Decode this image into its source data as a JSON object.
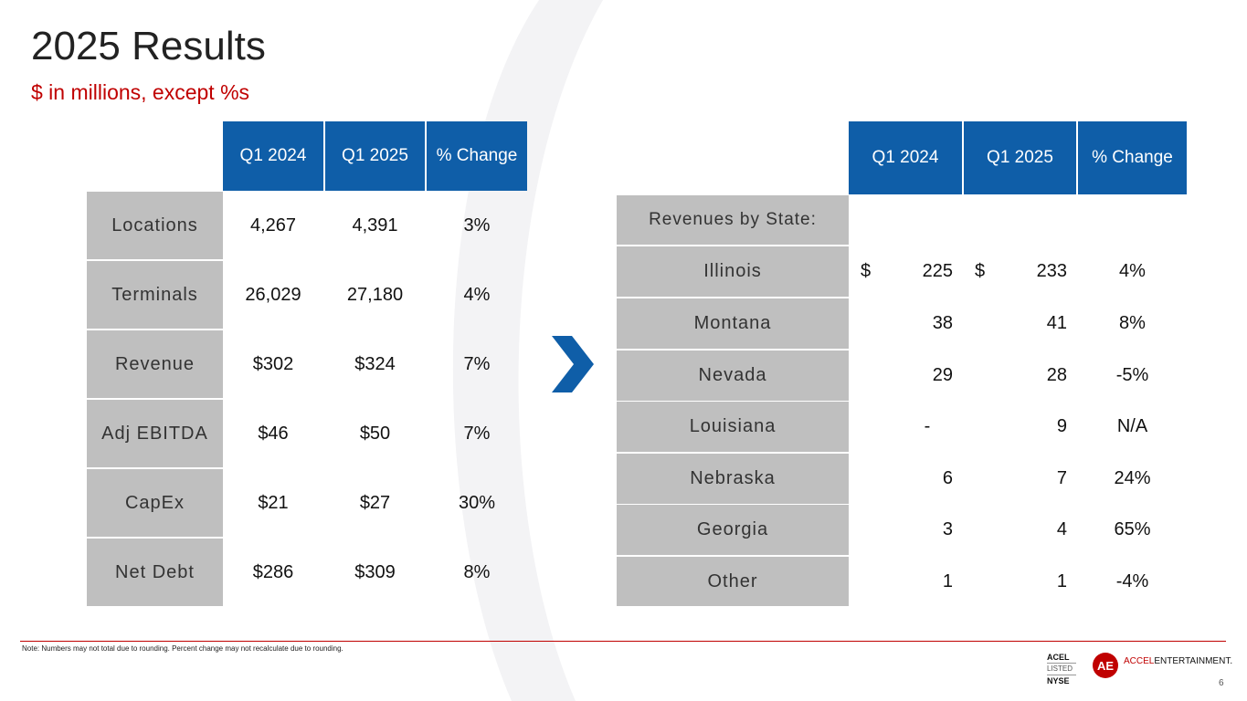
{
  "title": "2025 Results",
  "subtitle": "$ in millions, except %s",
  "left_table": {
    "headers": [
      "Q1 2024",
      "Q1 2025",
      "% Change"
    ],
    "rows": [
      {
        "label": "Locations",
        "q1_2024": "4,267",
        "q1_2025": "4,391",
        "change": "3%"
      },
      {
        "label": "Terminals",
        "q1_2024": "26,029",
        "q1_2025": "27,180",
        "change": "4%"
      },
      {
        "label": "Revenue",
        "q1_2024": "$302",
        "q1_2025": "$324",
        "change": "7%"
      },
      {
        "label": "Adj EBITDA",
        "q1_2024": "$46",
        "q1_2025": "$50",
        "change": "7%"
      },
      {
        "label": "CapEx",
        "q1_2024": "$21",
        "q1_2025": "$27",
        "change": "30%"
      },
      {
        "label": "Net Debt",
        "q1_2024": "$286",
        "q1_2025": "$309",
        "change": "8%"
      }
    ]
  },
  "right_table": {
    "headers": [
      "Q1 2024",
      "Q1 2025",
      "% Change"
    ],
    "section_label": "Revenues by State:",
    "currency_symbol": "$",
    "rows": [
      {
        "label": "Illinois",
        "q1_2024": "225",
        "q1_2025": "233",
        "change": "4%"
      },
      {
        "label": "Montana",
        "q1_2024": "38",
        "q1_2025": "41",
        "change": "8%"
      },
      {
        "label": "Nevada",
        "q1_2024": "29",
        "q1_2025": "28",
        "change": "-5%"
      },
      {
        "label": "Louisiana",
        "q1_2024": "-",
        "q1_2025": "9",
        "change": "N/A"
      },
      {
        "label": "Nebraska",
        "q1_2024": "6",
        "q1_2025": "7",
        "change": "24%"
      },
      {
        "label": "Georgia",
        "q1_2024": "3",
        "q1_2025": "4",
        "change": "65%"
      },
      {
        "label": "Other",
        "q1_2024": "1",
        "q1_2025": "1",
        "change": "-4%"
      }
    ]
  },
  "footer": {
    "note": "Note: Numbers may not total due to rounding. Percent change may not recalculate due to rounding.",
    "listed_top": "ACEL",
    "listed_mid": "LISTED",
    "listed_bottom": "NYSE",
    "logo_text": "AE",
    "brand_accent": "ACCEL",
    "brand_rest": "ENTERTAINMENT.",
    "page_number": "6"
  },
  "colors": {
    "header_blue": "#0f5ea8",
    "label_gray": "#bfbfbf",
    "accent_red": "#c00000"
  },
  "icons": {
    "arrow": "chevron-right-icon"
  }
}
